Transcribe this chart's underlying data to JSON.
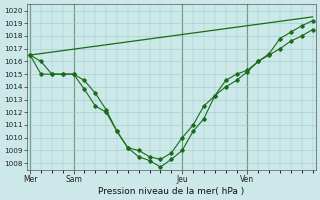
{
  "xlabel": "Pression niveau de la mer( hPa )",
  "ylim": [
    1007.5,
    1020.5
  ],
  "yticks": [
    1008,
    1009,
    1010,
    1011,
    1012,
    1013,
    1014,
    1015,
    1016,
    1017,
    1018,
    1019,
    1020
  ],
  "background_color": "#cce8e8",
  "grid_color": "#99cccc",
  "line_color": "#1a6b1a",
  "day_labels": [
    "Mer",
    "Sam",
    "Jeu",
    "Ven"
  ],
  "day_positions": [
    0,
    4,
    14,
    20
  ],
  "xlim": [
    -0.3,
    26.3
  ],
  "vline_color": "#336633",
  "line1_x": [
    0,
    1,
    2,
    3,
    4,
    5,
    6,
    7,
    8,
    9,
    10,
    11,
    12,
    13,
    14,
    15,
    16,
    17,
    18,
    19,
    20,
    21,
    22,
    23,
    24,
    25,
    26
  ],
  "line1_y": [
    1016.5,
    1016.0,
    1015.0,
    1015.0,
    1015.0,
    1014.5,
    1013.5,
    1012.2,
    1010.5,
    1009.2,
    1009.0,
    1008.5,
    1008.3,
    1008.8,
    1010.0,
    1011.0,
    1012.5,
    1013.3,
    1014.5,
    1015.0,
    1015.3,
    1016.0,
    1016.5,
    1017.0,
    1017.6,
    1018.0,
    1018.5
  ],
  "line2_x": [
    0,
    1,
    2,
    3,
    4,
    5,
    6,
    7,
    8,
    9,
    10,
    11,
    12,
    13,
    14,
    15,
    16,
    17,
    18,
    19,
    20,
    21,
    22,
    23,
    24,
    25,
    26
  ],
  "line2_y": [
    1016.5,
    1015.0,
    1015.0,
    1015.0,
    1015.0,
    1013.8,
    1012.5,
    1012.0,
    1010.5,
    1009.2,
    1008.5,
    1008.2,
    1007.7,
    1008.3,
    1009.0,
    1010.5,
    1011.5,
    1013.3,
    1014.0,
    1014.5,
    1015.2,
    1016.0,
    1016.6,
    1017.8,
    1018.3,
    1018.8,
    1019.2
  ],
  "line3_x": [
    0,
    26
  ],
  "line3_y": [
    1016.5,
    1019.5
  ],
  "figsize": [
    3.2,
    2.0
  ],
  "dpi": 100
}
